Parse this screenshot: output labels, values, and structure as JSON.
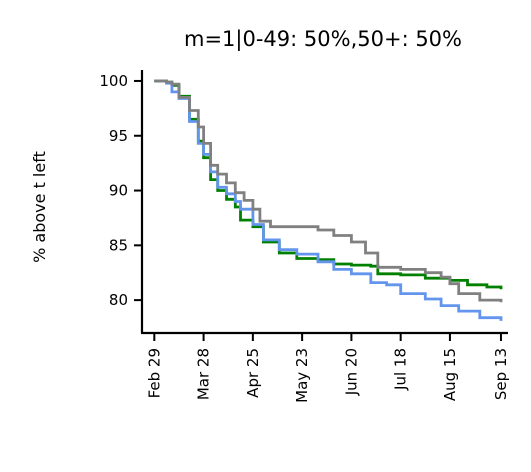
{
  "chart_data": {
    "type": "line",
    "title": "m=1|0-49: 50%,50+: 50%",
    "xlabel": "",
    "ylabel": "% above t left",
    "xlim": [
      "2020-02-22",
      "2020-09-17"
    ],
    "ylim": [
      77,
      101
    ],
    "grid": false,
    "x_ticks": [
      "2020-02-29",
      "2020-03-28",
      "2020-04-25",
      "2020-05-23",
      "2020-06-20",
      "2020-07-18",
      "2020-08-15",
      "2020-09-13"
    ],
    "x_tick_labels": [
      "Feb 29",
      "Mar 28",
      "Apr 25",
      "May 23",
      "Jun 20",
      "Jul 18",
      "Aug 15",
      "Sep 13"
    ],
    "y_ticks": [
      80,
      85,
      90,
      95,
      100
    ],
    "y_tick_labels": [
      "80",
      "85",
      "90",
      "95",
      "100"
    ],
    "series": [
      {
        "color": "#008000",
        "points": [
          [
            "2020-02-29",
            100
          ],
          [
            "2020-03-07",
            99.9
          ],
          [
            "2020-03-10",
            99.6
          ],
          [
            "2020-03-14",
            98.6
          ],
          [
            "2020-03-20",
            96.5
          ],
          [
            "2020-03-25",
            94.5
          ],
          [
            "2020-03-28",
            93.0
          ],
          [
            "2020-04-01",
            91.0
          ],
          [
            "2020-04-05",
            90.0
          ],
          [
            "2020-04-10",
            89.2
          ],
          [
            "2020-04-15",
            88.5
          ],
          [
            "2020-04-18",
            87.3
          ],
          [
            "2020-04-25",
            86.7
          ],
          [
            "2020-05-01",
            85.3
          ],
          [
            "2020-05-10",
            84.3
          ],
          [
            "2020-05-20",
            83.8
          ],
          [
            "2020-06-01",
            83.7
          ],
          [
            "2020-06-10",
            83.3
          ],
          [
            "2020-06-20",
            83.2
          ],
          [
            "2020-07-01",
            83.1
          ],
          [
            "2020-07-05",
            82.4
          ],
          [
            "2020-07-18",
            82.3
          ],
          [
            "2020-08-01",
            82.0
          ],
          [
            "2020-08-15",
            81.8
          ],
          [
            "2020-08-25",
            81.4
          ],
          [
            "2020-09-05",
            81.2
          ],
          [
            "2020-09-13",
            81.0
          ]
        ]
      },
      {
        "color": "#6495ED",
        "points": [
          [
            "2020-02-29",
            100
          ],
          [
            "2020-03-07",
            99.8
          ],
          [
            "2020-03-10",
            99.0
          ],
          [
            "2020-03-14",
            98.4
          ],
          [
            "2020-03-20",
            96.3
          ],
          [
            "2020-03-25",
            94.3
          ],
          [
            "2020-03-28",
            93.3
          ],
          [
            "2020-04-01",
            91.7
          ],
          [
            "2020-04-05",
            90.3
          ],
          [
            "2020-04-10",
            89.7
          ],
          [
            "2020-04-15",
            89.0
          ],
          [
            "2020-04-18",
            88.3
          ],
          [
            "2020-04-25",
            86.9
          ],
          [
            "2020-05-01",
            85.5
          ],
          [
            "2020-05-10",
            84.6
          ],
          [
            "2020-05-20",
            84.2
          ],
          [
            "2020-06-01",
            83.5
          ],
          [
            "2020-06-10",
            82.8
          ],
          [
            "2020-06-20",
            82.4
          ],
          [
            "2020-07-01",
            81.6
          ],
          [
            "2020-07-10",
            81.4
          ],
          [
            "2020-07-18",
            80.6
          ],
          [
            "2020-08-01",
            80.1
          ],
          [
            "2020-08-10",
            79.5
          ],
          [
            "2020-08-20",
            79.0
          ],
          [
            "2020-09-01",
            78.4
          ],
          [
            "2020-09-13",
            78.1
          ]
        ]
      },
      {
        "color": "#808080",
        "points": [
          [
            "2020-02-29",
            100
          ],
          [
            "2020-03-07",
            99.9
          ],
          [
            "2020-03-10",
            99.7
          ],
          [
            "2020-03-14",
            98.5
          ],
          [
            "2020-03-20",
            97.3
          ],
          [
            "2020-03-25",
            95.8
          ],
          [
            "2020-03-28",
            94.3
          ],
          [
            "2020-04-01",
            92.3
          ],
          [
            "2020-04-05",
            91.5
          ],
          [
            "2020-04-10",
            90.7
          ],
          [
            "2020-04-15",
            89.8
          ],
          [
            "2020-04-20",
            89.1
          ],
          [
            "2020-04-25",
            88.3
          ],
          [
            "2020-04-29",
            87.2
          ],
          [
            "2020-05-05",
            86.7
          ],
          [
            "2020-05-20",
            86.7
          ],
          [
            "2020-06-01",
            86.4
          ],
          [
            "2020-06-10",
            85.9
          ],
          [
            "2020-06-20",
            85.3
          ],
          [
            "2020-06-28",
            84.3
          ],
          [
            "2020-07-05",
            83.0
          ],
          [
            "2020-07-18",
            82.8
          ],
          [
            "2020-08-01",
            82.5
          ],
          [
            "2020-08-10",
            82.1
          ],
          [
            "2020-08-15",
            81.5
          ],
          [
            "2020-08-20",
            80.6
          ],
          [
            "2020-09-01",
            80.0
          ],
          [
            "2020-09-13",
            79.8
          ]
        ]
      }
    ]
  }
}
